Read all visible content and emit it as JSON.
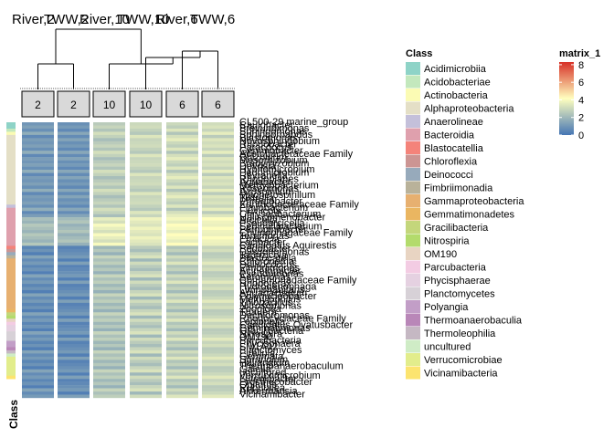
{
  "chart_data": {
    "type": "heatmap",
    "column_titles": [
      "River,2",
      "TWW,2",
      "River,10",
      "TWW,10",
      "River,6",
      "TWW,6"
    ],
    "column_annotations": [
      "2",
      "2",
      "10",
      "10",
      "6",
      "6"
    ],
    "row_axis_label": "Class",
    "class_legend": {
      "title": "Class",
      "items": [
        {
          "name": "Acidimicrobiia",
          "color": "#8ed3c7"
        },
        {
          "name": "Acidobacteriae",
          "color": "#c3e8bd"
        },
        {
          "name": "Actinobacteria",
          "color": "#fbfbb4"
        },
        {
          "name": "Alphaproteobacteria",
          "color": "#e4dfc6"
        },
        {
          "name": "Anaerolineae",
          "color": "#c4c0da"
        },
        {
          "name": "Bacteroidia",
          "color": "#dfa0ad"
        },
        {
          "name": "Blastocatellia",
          "color": "#f4837a"
        },
        {
          "name": "Chloroflexia",
          "color": "#cc9593"
        },
        {
          "name": "Deinococci",
          "color": "#97aabb"
        },
        {
          "name": "Fimbriimonadia",
          "color": "#b9b29a"
        },
        {
          "name": "Gammaproteobacteria",
          "color": "#e7b070"
        },
        {
          "name": "Gemmatimonadetes",
          "color": "#eab661"
        },
        {
          "name": "Gracilibacteria",
          "color": "#c4d67b"
        },
        {
          "name": "Nitrospiria",
          "color": "#b3db6c"
        },
        {
          "name": "OM190",
          "color": "#e8d4c2"
        },
        {
          "name": "Parcubacteria",
          "color": "#f3cce3"
        },
        {
          "name": "Phycisphaerae",
          "color": "#e5d1e1"
        },
        {
          "name": "Planctomycetes",
          "color": "#d7d1d7"
        },
        {
          "name": "Polyangia",
          "color": "#c29ec7"
        },
        {
          "name": "Thermoanaerobaculia",
          "color": "#b987b8"
        },
        {
          "name": "Thermoleophilia",
          "color": "#c5b8c3"
        },
        {
          "name": "uncultured",
          "color": "#cfecc6"
        },
        {
          "name": "Verrucomicrobiae",
          "color": "#e2ed8c"
        },
        {
          "name": "Vicinamibacteria",
          "color": "#fce46f"
        }
      ]
    },
    "matrix_legend": {
      "title": "matrix_1",
      "ticks": [
        8,
        6,
        4,
        2,
        0
      ],
      "range": [
        0,
        8.3
      ],
      "colors": [
        "#4575b4",
        "#ffffbf",
        "#d73027"
      ]
    },
    "class_bar_segments": [
      {
        "class": "Acidimicrobiia",
        "rows": 2
      },
      {
        "class": "Acidobacteriae",
        "rows": 1
      },
      {
        "class": "Actinobacteria",
        "rows": 1
      },
      {
        "class": "Alphaproteobacteria",
        "rows": 22
      },
      {
        "class": "Anaerolineae",
        "rows": 1
      },
      {
        "class": "Bacteroidia",
        "rows": 12
      },
      {
        "class": "Blastocatellia",
        "rows": 1
      },
      {
        "class": "Chloroflexia",
        "rows": 1
      },
      {
        "class": "Deinococci",
        "rows": 1
      },
      {
        "class": "Fimbriimonadia",
        "rows": 1
      },
      {
        "class": "Gammaproteobacteria",
        "rows": 16
      },
      {
        "class": "Gemmatimonadetes",
        "rows": 1
      },
      {
        "class": "Gracilibacteria",
        "rows": 1
      },
      {
        "class": "Nitrospiria",
        "rows": 1
      },
      {
        "class": "OM190",
        "rows": 1
      },
      {
        "class": "Parcubacteria",
        "rows": 1
      },
      {
        "class": "Phycisphaerae",
        "rows": 2
      },
      {
        "class": "Planctomycetes",
        "rows": 3
      },
      {
        "class": "Polyangia",
        "rows": 2
      },
      {
        "class": "Thermoanaerobaculia",
        "rows": 1
      },
      {
        "class": "Thermoleophilia",
        "rows": 1
      },
      {
        "class": "uncultured",
        "rows": 1
      },
      {
        "class": "Verrucomicrobiae",
        "rows": 6
      },
      {
        "class": "Vicinamibacteria",
        "rows": 1
      }
    ],
    "row_labels": [
      "CL500-29 marine_group",
      "Caulobacter",
      "Brevundimonas",
      "Sphingomonas",
      "Sphingorhabdus",
      "Blastomonas",
      "Novosphingobium",
      "Rhodobacter",
      "Paracoccus",
      "Gemmobacter",
      "Acetobacteraceae Family",
      "Rhizobium",
      "Mesorhizobium",
      "Bradyrhizobium",
      "Devosia",
      "Hyphomicrobium",
      "Pedomicrobium",
      "Reyranella",
      "Rhodoplanes",
      "Aquabacter",
      "Methylobacterium",
      "Roseomonas",
      "Azospirillum",
      "Magnetospirillum",
      "Tistrella",
      "Phreatobacter",
      "Xanthobacteraceae Family",
      "Flavobacterium",
      "Fluviicola",
      "Chryseobacterium",
      "Haliscomenobacter",
      "Arcicella",
      "Pseudarcicella",
      "Sediminibacterium",
      "Ferruginibacter",
      "Chitinophagaceae Family",
      "Terrimonas",
      "Emticicia",
      "Lacibacter",
      "Candidatus Aquirestis",
      "Pedobacter",
      "Dysgonomonas",
      "Tabrizicola",
      "Blastocatella",
      "Chloronema",
      "Deinococcus",
      "Fimbriimonas",
      "Acinetobacter",
      "Pseudomonas",
      "Aeromonas",
      "Comamonadaceae Family",
      "Rhodoferax",
      "Hydrogenophaga",
      "Limnohabitans",
      "Aquabacterium",
      "Polynucleobacter",
      "Methylophilus",
      "Thiobacillus",
      "Nitrosomonas",
      "Zoogloea",
      "Thauera",
      "Dechloromonas",
      "Rhodocyclaceae Family",
      "Legionella",
      "Candidatus Ovatusbacter",
      "Gemmatimonas",
      "Gracilibacteria",
      "Nitrospira",
      "OM190",
      "Parcubacteria",
      "Phycisphaera",
      "SM1A02",
      "Planctomyces",
      "Pirellula",
      "Gemmata",
      "Sorangium",
      "Haliangium",
      "Thermoanaerobaculum",
      "Gaiella",
      "uncultured",
      "Verrucomicrobium",
      "Luteolibacter",
      "Prosthecobacter",
      "Opitutus",
      "Rubritalea",
      "Akkermansia",
      "Vicinamibacter"
    ],
    "row_clusters": [
      {
        "rows": 30,
        "values": [
          [
            1.0,
            0.8,
            2.6,
            3.0,
            3.0,
            3.1
          ],
          [
            1.3,
            1.1,
            2.9,
            3.1,
            2.7,
            3.3
          ],
          [
            0.8,
            0.6,
            2.4,
            2.8,
            3.4,
            2.9
          ],
          [
            1.7,
            1.5,
            3.2,
            2.5,
            2.4,
            3.6
          ],
          [
            0.6,
            0.7,
            2.8,
            3.4,
            3.2,
            2.6
          ],
          [
            1.2,
            1.4,
            2.2,
            2.9,
            3.6,
            3.4
          ]
        ]
      },
      {
        "rows": 9,
        "values": [
          [
            2.2,
            2.1,
            3.6,
            3.8,
            3.9,
            4.1
          ],
          [
            1.9,
            2.4,
            3.2,
            3.5,
            3.6,
            3.8
          ],
          [
            2.5,
            1.8,
            4.0,
            3.3,
            4.2,
            3.7
          ]
        ]
      },
      {
        "rows": 48,
        "values": [
          [
            0.5,
            0.4,
            2.0,
            2.6,
            2.4,
            2.9
          ],
          [
            0.9,
            0.6,
            2.5,
            2.2,
            2.8,
            3.2
          ],
          [
            0.3,
            0.8,
            1.8,
            2.9,
            2.1,
            2.6
          ],
          [
            1.4,
            1.1,
            2.9,
            3.3,
            3.1,
            2.7
          ],
          [
            0.7,
            0.3,
            2.3,
            2.0,
            2.6,
            3.0
          ],
          [
            1.1,
            1.3,
            2.7,
            3.1,
            3.4,
            3.5
          ]
        ]
      }
    ]
  }
}
